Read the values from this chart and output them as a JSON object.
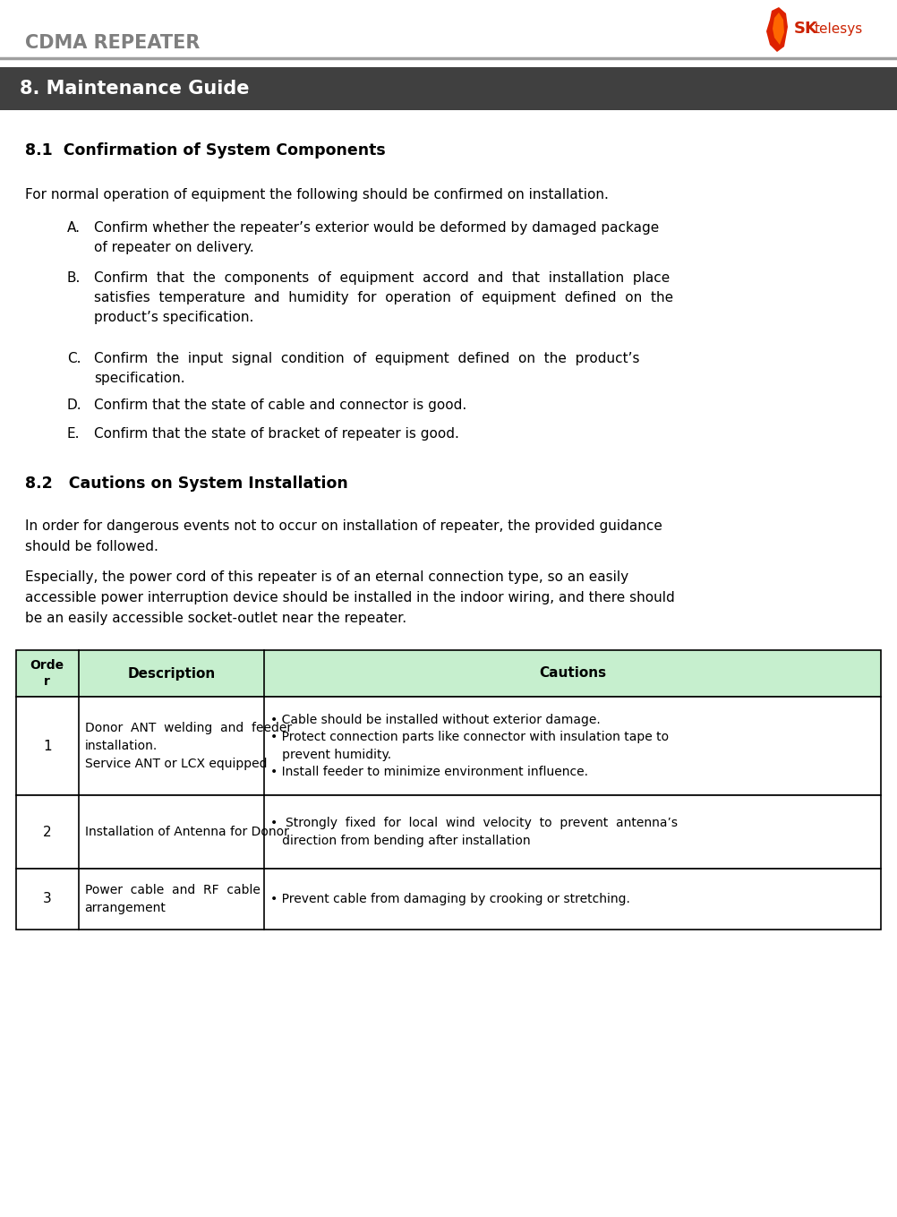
{
  "page_bg": "#ffffff",
  "header_text": "CDMA REPEATER",
  "header_text_color": "#7f7f7f",
  "header_line_color": "#9f9f9f",
  "section_bar_color": "#404040",
  "section_bar_text": "8. Maintenance Guide",
  "section_bar_text_color": "#ffffff",
  "section81_title": "8.1  Confirmation of System Components",
  "section82_title": "8.2   Cautions on System Installation",
  "para1": "For normal operation of equipment the following should be confirmed on installation.",
  "item_A_label": "A.",
  "item_A_text": "Confirm whether the repeater’s exterior would be deformed by damaged package\nof repeater on delivery.",
  "item_B_label": "B.",
  "item_B_text": "Confirm  that  the  components  of  equipment  accord  and  that  installation  place\nsatisfies  temperature  and  humidity  for  operation  of  equipment  defined  on  the\nproduct’s specification.",
  "item_C_label": "C.",
  "item_C_text": "Confirm  the  input  signal  condition  of  equipment  defined  on  the  product’s\nspecification.",
  "item_D_label": "D.",
  "item_D_text": "Confirm that the state of cable and connector is good.",
  "item_E_label": "E.",
  "item_E_text": "Confirm that the state of bracket of repeater is good.",
  "para2_line1": "In order for dangerous events not to occur on installation of repeater, the provided guidance",
  "para2_line2": "should be followed.",
  "para3_line1": "Especially, the power cord of this repeater is of an eternal connection type, so an easily",
  "para3_line2": "accessible power interruption device should be installed in the indoor wiring, and there should",
  "para3_line3": "be an easily accessible socket-outlet near the repeater.",
  "table_header_bg": "#c6efce",
  "table_border_color": "#000000",
  "table_header_text_color": "#000000",
  "col0_header": "Orde\nr",
  "col1_header": "Description",
  "col2_header": "Cautions",
  "row1_order": "1",
  "row1_desc_line1": "Donor  ANT  welding  and  feeder",
  "row1_desc_line2": "installation.",
  "row1_desc_line3": "Service ANT or LCX equipped",
  "row1_caut_line1": "• Cable should be installed without exterior damage.",
  "row1_caut_line2": "• Protect connection parts like connector with insulation tape to",
  "row1_caut_line3": "   prevent humidity.",
  "row1_caut_line4": "• Install feeder to minimize environment influence.",
  "row2_order": "2",
  "row2_desc": "Installation of Antenna for Donor",
  "row2_caut_line1": "•  Strongly  fixed  for  local  wind  velocity  to  prevent  antenna’s",
  "row2_caut_line2": "   direction from bending after installation",
  "row3_order": "3",
  "row3_desc_line1": "Power  cable  and  RF  cable",
  "row3_desc_line2": "arrangement",
  "row3_caut": "• Prevent cable from damaging by crooking or stretching.",
  "sk_red": "#cc2200",
  "sk_orange": "#ff6600"
}
